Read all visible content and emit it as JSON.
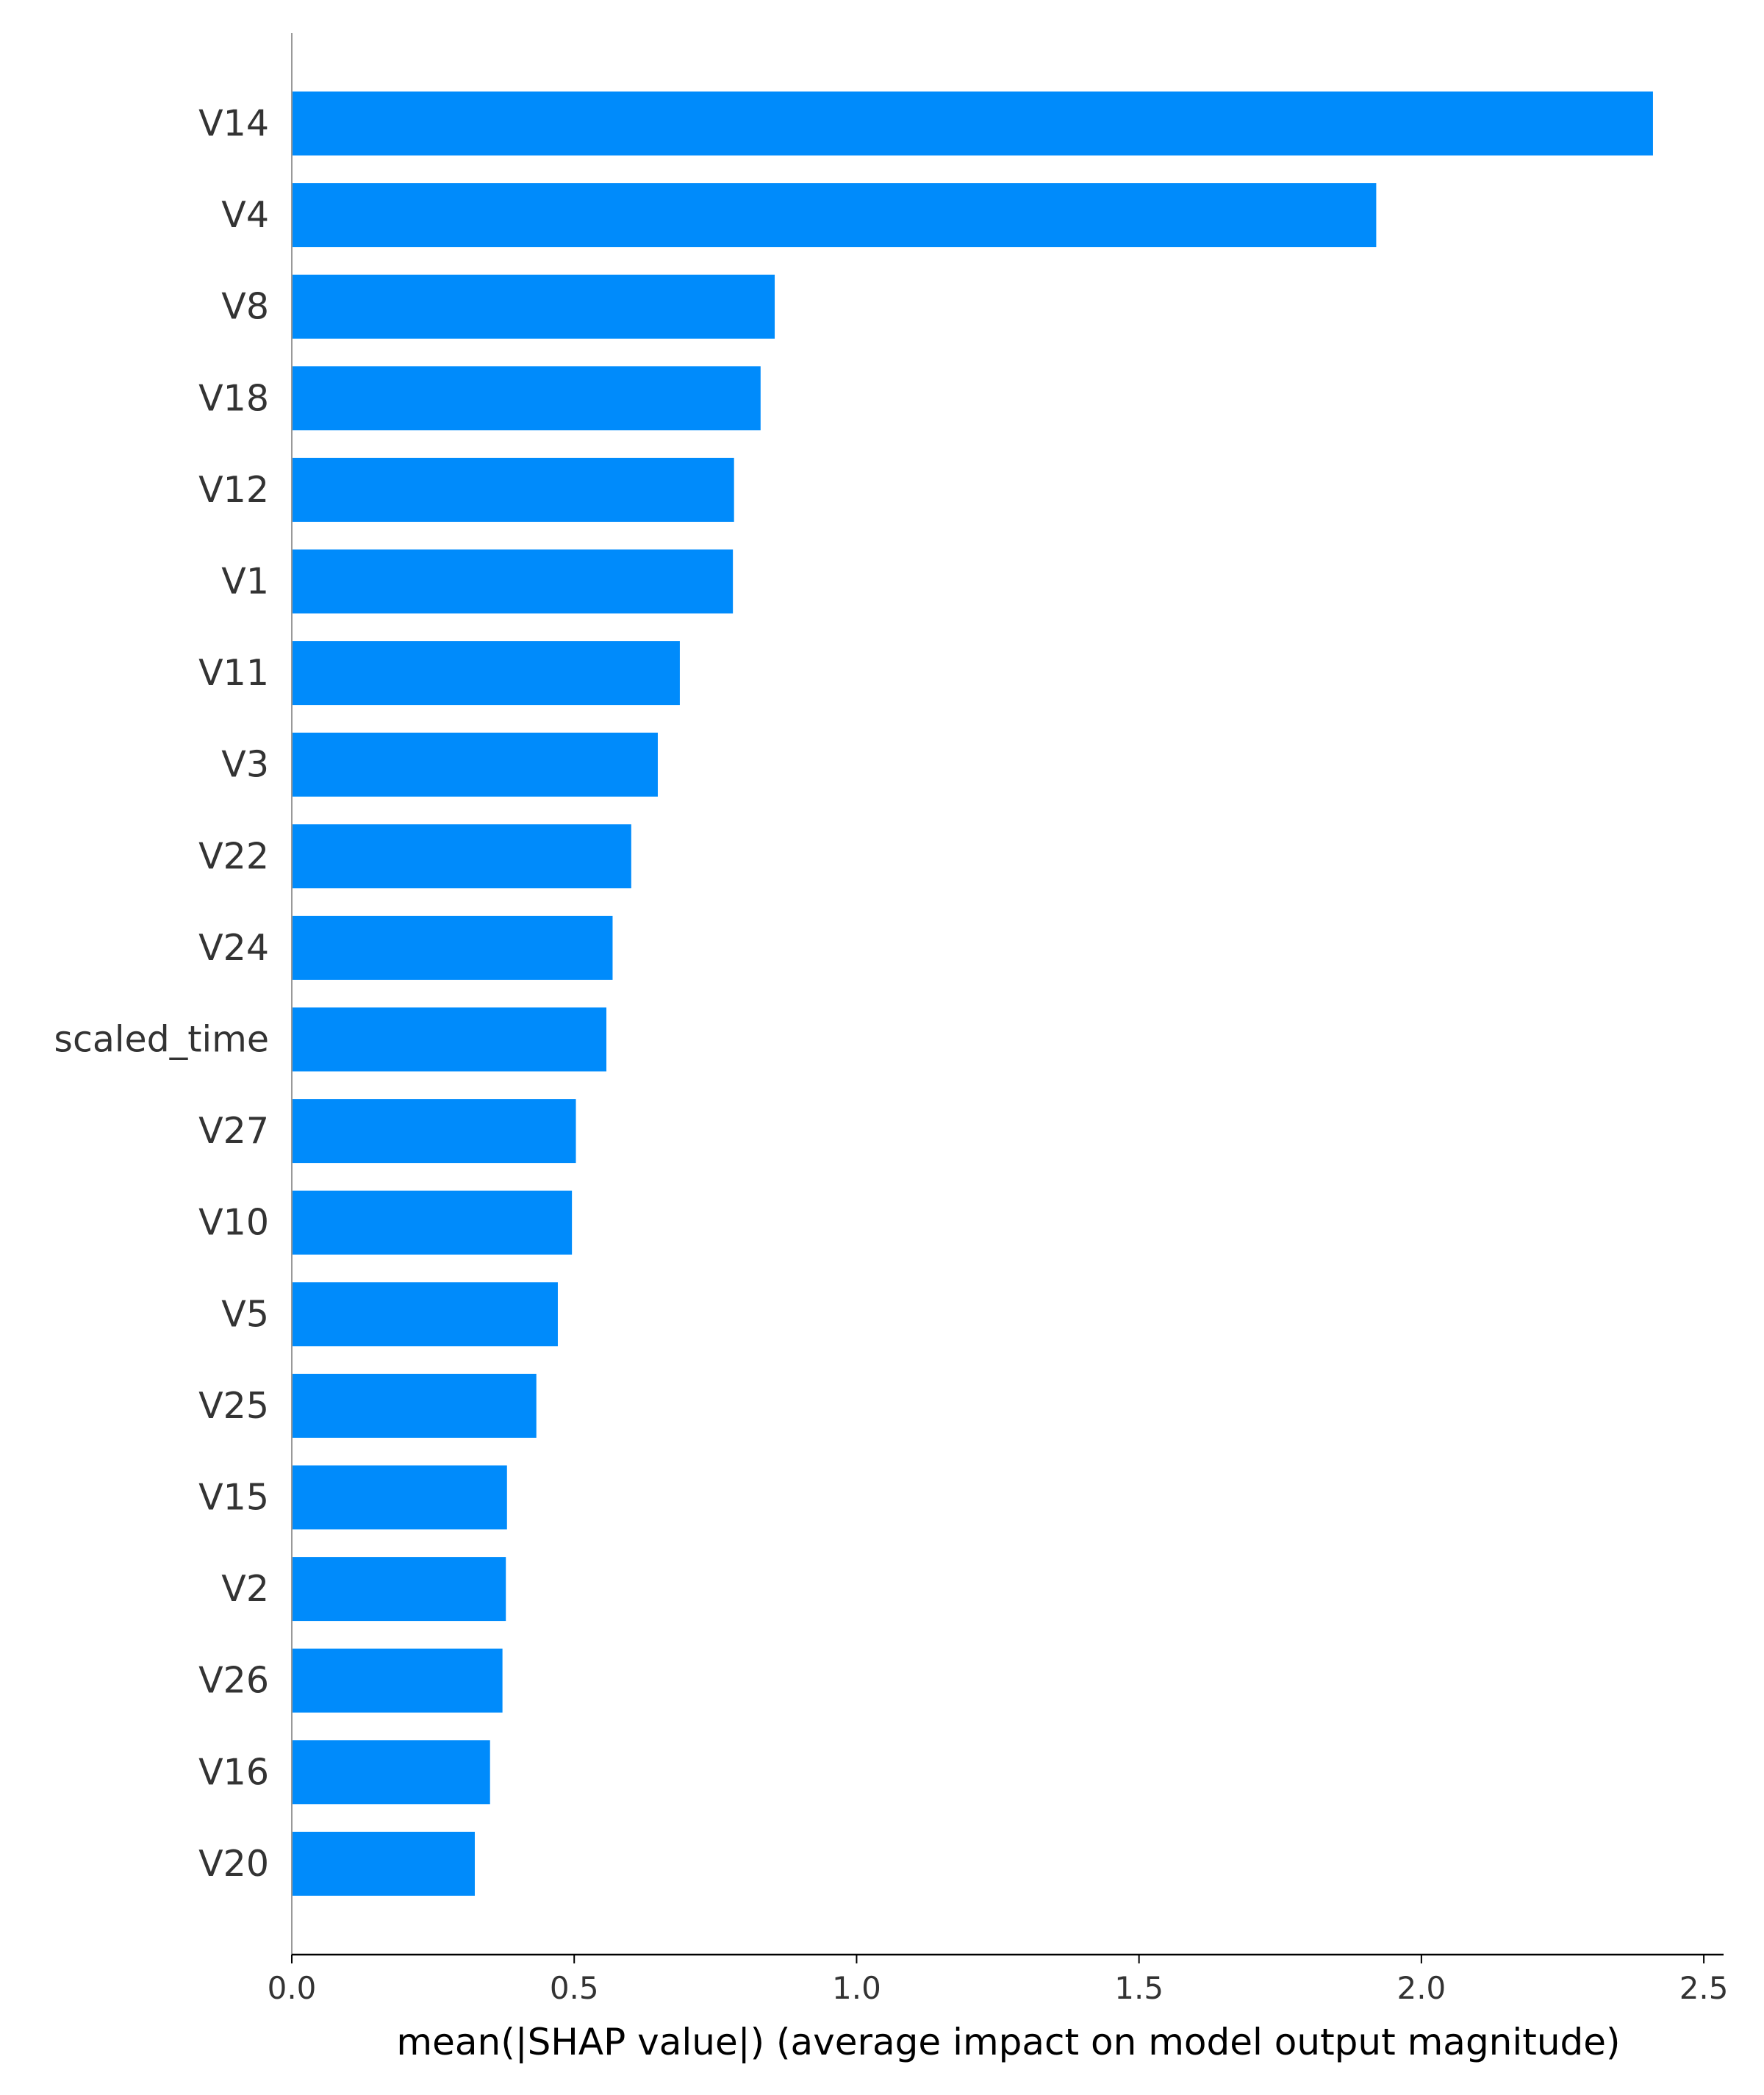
{
  "chart_data": {
    "type": "bar",
    "orientation": "horizontal",
    "categories": [
      "V14",
      "V4",
      "V8",
      "V18",
      "V12",
      "V1",
      "V11",
      "V3",
      "V22",
      "V24",
      "scaled_time",
      "V27",
      "V10",
      "V5",
      "V25",
      "V15",
      "V2",
      "V26",
      "V16",
      "V20"
    ],
    "values": [
      2.41,
      1.92,
      0.855,
      0.83,
      0.783,
      0.781,
      0.687,
      0.648,
      0.601,
      0.568,
      0.557,
      0.503,
      0.496,
      0.471,
      0.433,
      0.381,
      0.379,
      0.373,
      0.351,
      0.324
    ],
    "xlabel": "mean(|SHAP value|) (average impact on model output magnitude)",
    "xticks": [
      "0.0",
      "0.5",
      "1.0",
      "1.5",
      "2.0",
      "2.5"
    ],
    "xtick_values": [
      0,
      0.5,
      1.0,
      1.5,
      2.0,
      2.5
    ],
    "xlim": [
      0,
      2.535
    ],
    "bar_color": "#008bfb",
    "grid": false,
    "legend": false
  }
}
